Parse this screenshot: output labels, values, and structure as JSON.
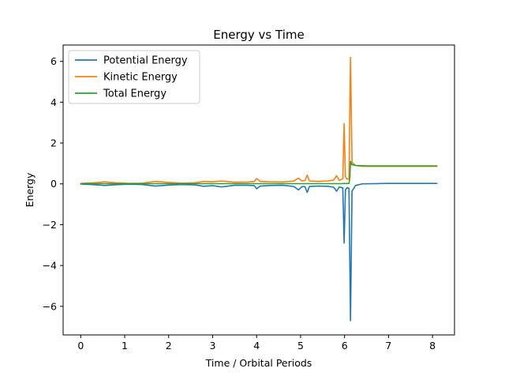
{
  "chart_data": {
    "type": "line",
    "title": "Energy vs Time",
    "xlabel": "Time / Orbital Periods",
    "ylabel": "Energy",
    "xlim": [
      -0.4,
      8.5
    ],
    "ylim": [
      -7.4,
      6.8
    ],
    "xticks": [
      0,
      1,
      2,
      3,
      4,
      5,
      6,
      7,
      8
    ],
    "yticks": [
      6,
      4,
      2,
      0,
      -2,
      -4,
      -6
    ],
    "ytick_labels": [
      "6",
      "4",
      "2",
      "0",
      "−2",
      "−4",
      "−6"
    ],
    "grid": false,
    "legend_position": "upper-left",
    "series": [
      {
        "name": "Potential Energy",
        "color": "#1f77b4",
        "points": [
          [
            0.0,
            -0.01
          ],
          [
            0.3,
            -0.04
          ],
          [
            0.55,
            -0.08
          ],
          [
            0.8,
            -0.04
          ],
          [
            1.1,
            -0.02
          ],
          [
            1.4,
            -0.03
          ],
          [
            1.7,
            -0.11
          ],
          [
            2.0,
            -0.06
          ],
          [
            2.3,
            -0.03
          ],
          [
            2.6,
            -0.05
          ],
          [
            2.8,
            -0.12
          ],
          [
            3.0,
            -0.09
          ],
          [
            3.2,
            -0.15
          ],
          [
            3.5,
            -0.07
          ],
          [
            3.8,
            -0.07
          ],
          [
            3.95,
            -0.09
          ],
          [
            4.0,
            -0.24
          ],
          [
            4.08,
            -0.11
          ],
          [
            4.3,
            -0.08
          ],
          [
            4.6,
            -0.07
          ],
          [
            4.85,
            -0.13
          ],
          [
            4.95,
            -0.3
          ],
          [
            5.03,
            -0.14
          ],
          [
            5.1,
            -0.14
          ],
          [
            5.15,
            -0.42
          ],
          [
            5.2,
            -0.13
          ],
          [
            5.4,
            -0.11
          ],
          [
            5.6,
            -0.12
          ],
          [
            5.75,
            -0.16
          ],
          [
            5.82,
            -0.36
          ],
          [
            5.88,
            -0.15
          ],
          [
            5.96,
            -0.2
          ],
          [
            5.99,
            -2.9
          ],
          [
            6.02,
            -0.3
          ],
          [
            6.06,
            -0.18
          ],
          [
            6.1,
            -0.22
          ],
          [
            6.135,
            -6.7
          ],
          [
            6.17,
            -0.35
          ],
          [
            6.25,
            -0.08
          ],
          [
            6.4,
            0.0
          ],
          [
            7.0,
            0.02
          ],
          [
            8.1,
            0.02
          ]
        ]
      },
      {
        "name": "Kinetic Energy",
        "color": "#ff7f0e",
        "points": [
          [
            0.0,
            0.02
          ],
          [
            0.3,
            0.05
          ],
          [
            0.55,
            0.1
          ],
          [
            0.8,
            0.05
          ],
          [
            1.1,
            0.02
          ],
          [
            1.4,
            0.03
          ],
          [
            1.7,
            0.12
          ],
          [
            2.0,
            0.07
          ],
          [
            2.3,
            0.03
          ],
          [
            2.6,
            0.05
          ],
          [
            2.8,
            0.12
          ],
          [
            3.0,
            0.1
          ],
          [
            3.2,
            0.14
          ],
          [
            3.5,
            0.08
          ],
          [
            3.8,
            0.09
          ],
          [
            3.95,
            0.12
          ],
          [
            4.0,
            0.26
          ],
          [
            4.08,
            0.12
          ],
          [
            4.3,
            0.1
          ],
          [
            4.6,
            0.09
          ],
          [
            4.85,
            0.14
          ],
          [
            4.95,
            0.28
          ],
          [
            5.03,
            0.14
          ],
          [
            5.1,
            0.16
          ],
          [
            5.15,
            0.43
          ],
          [
            5.2,
            0.14
          ],
          [
            5.4,
            0.12
          ],
          [
            5.6,
            0.14
          ],
          [
            5.75,
            0.18
          ],
          [
            5.82,
            0.4
          ],
          [
            5.88,
            0.17
          ],
          [
            5.96,
            0.25
          ],
          [
            5.99,
            2.95
          ],
          [
            6.02,
            0.35
          ],
          [
            6.06,
            0.22
          ],
          [
            6.1,
            0.25
          ],
          [
            6.135,
            6.2
          ],
          [
            6.17,
            1.05
          ],
          [
            6.25,
            0.9
          ],
          [
            6.4,
            0.86
          ],
          [
            7.0,
            0.86
          ],
          [
            8.1,
            0.86
          ]
        ]
      },
      {
        "name": "Total Energy",
        "color": "#2ca02c",
        "points": [
          [
            0.0,
            0.01
          ],
          [
            1.0,
            0.01
          ],
          [
            2.0,
            0.01
          ],
          [
            3.0,
            0.01
          ],
          [
            4.0,
            0.01
          ],
          [
            5.0,
            0.01
          ],
          [
            5.9,
            0.01
          ],
          [
            6.1,
            0.02
          ],
          [
            6.12,
            0.3
          ],
          [
            6.135,
            1.1
          ],
          [
            6.16,
            0.95
          ],
          [
            6.25,
            0.9
          ],
          [
            6.5,
            0.88
          ],
          [
            7.5,
            0.88
          ],
          [
            8.1,
            0.88
          ]
        ]
      }
    ]
  }
}
